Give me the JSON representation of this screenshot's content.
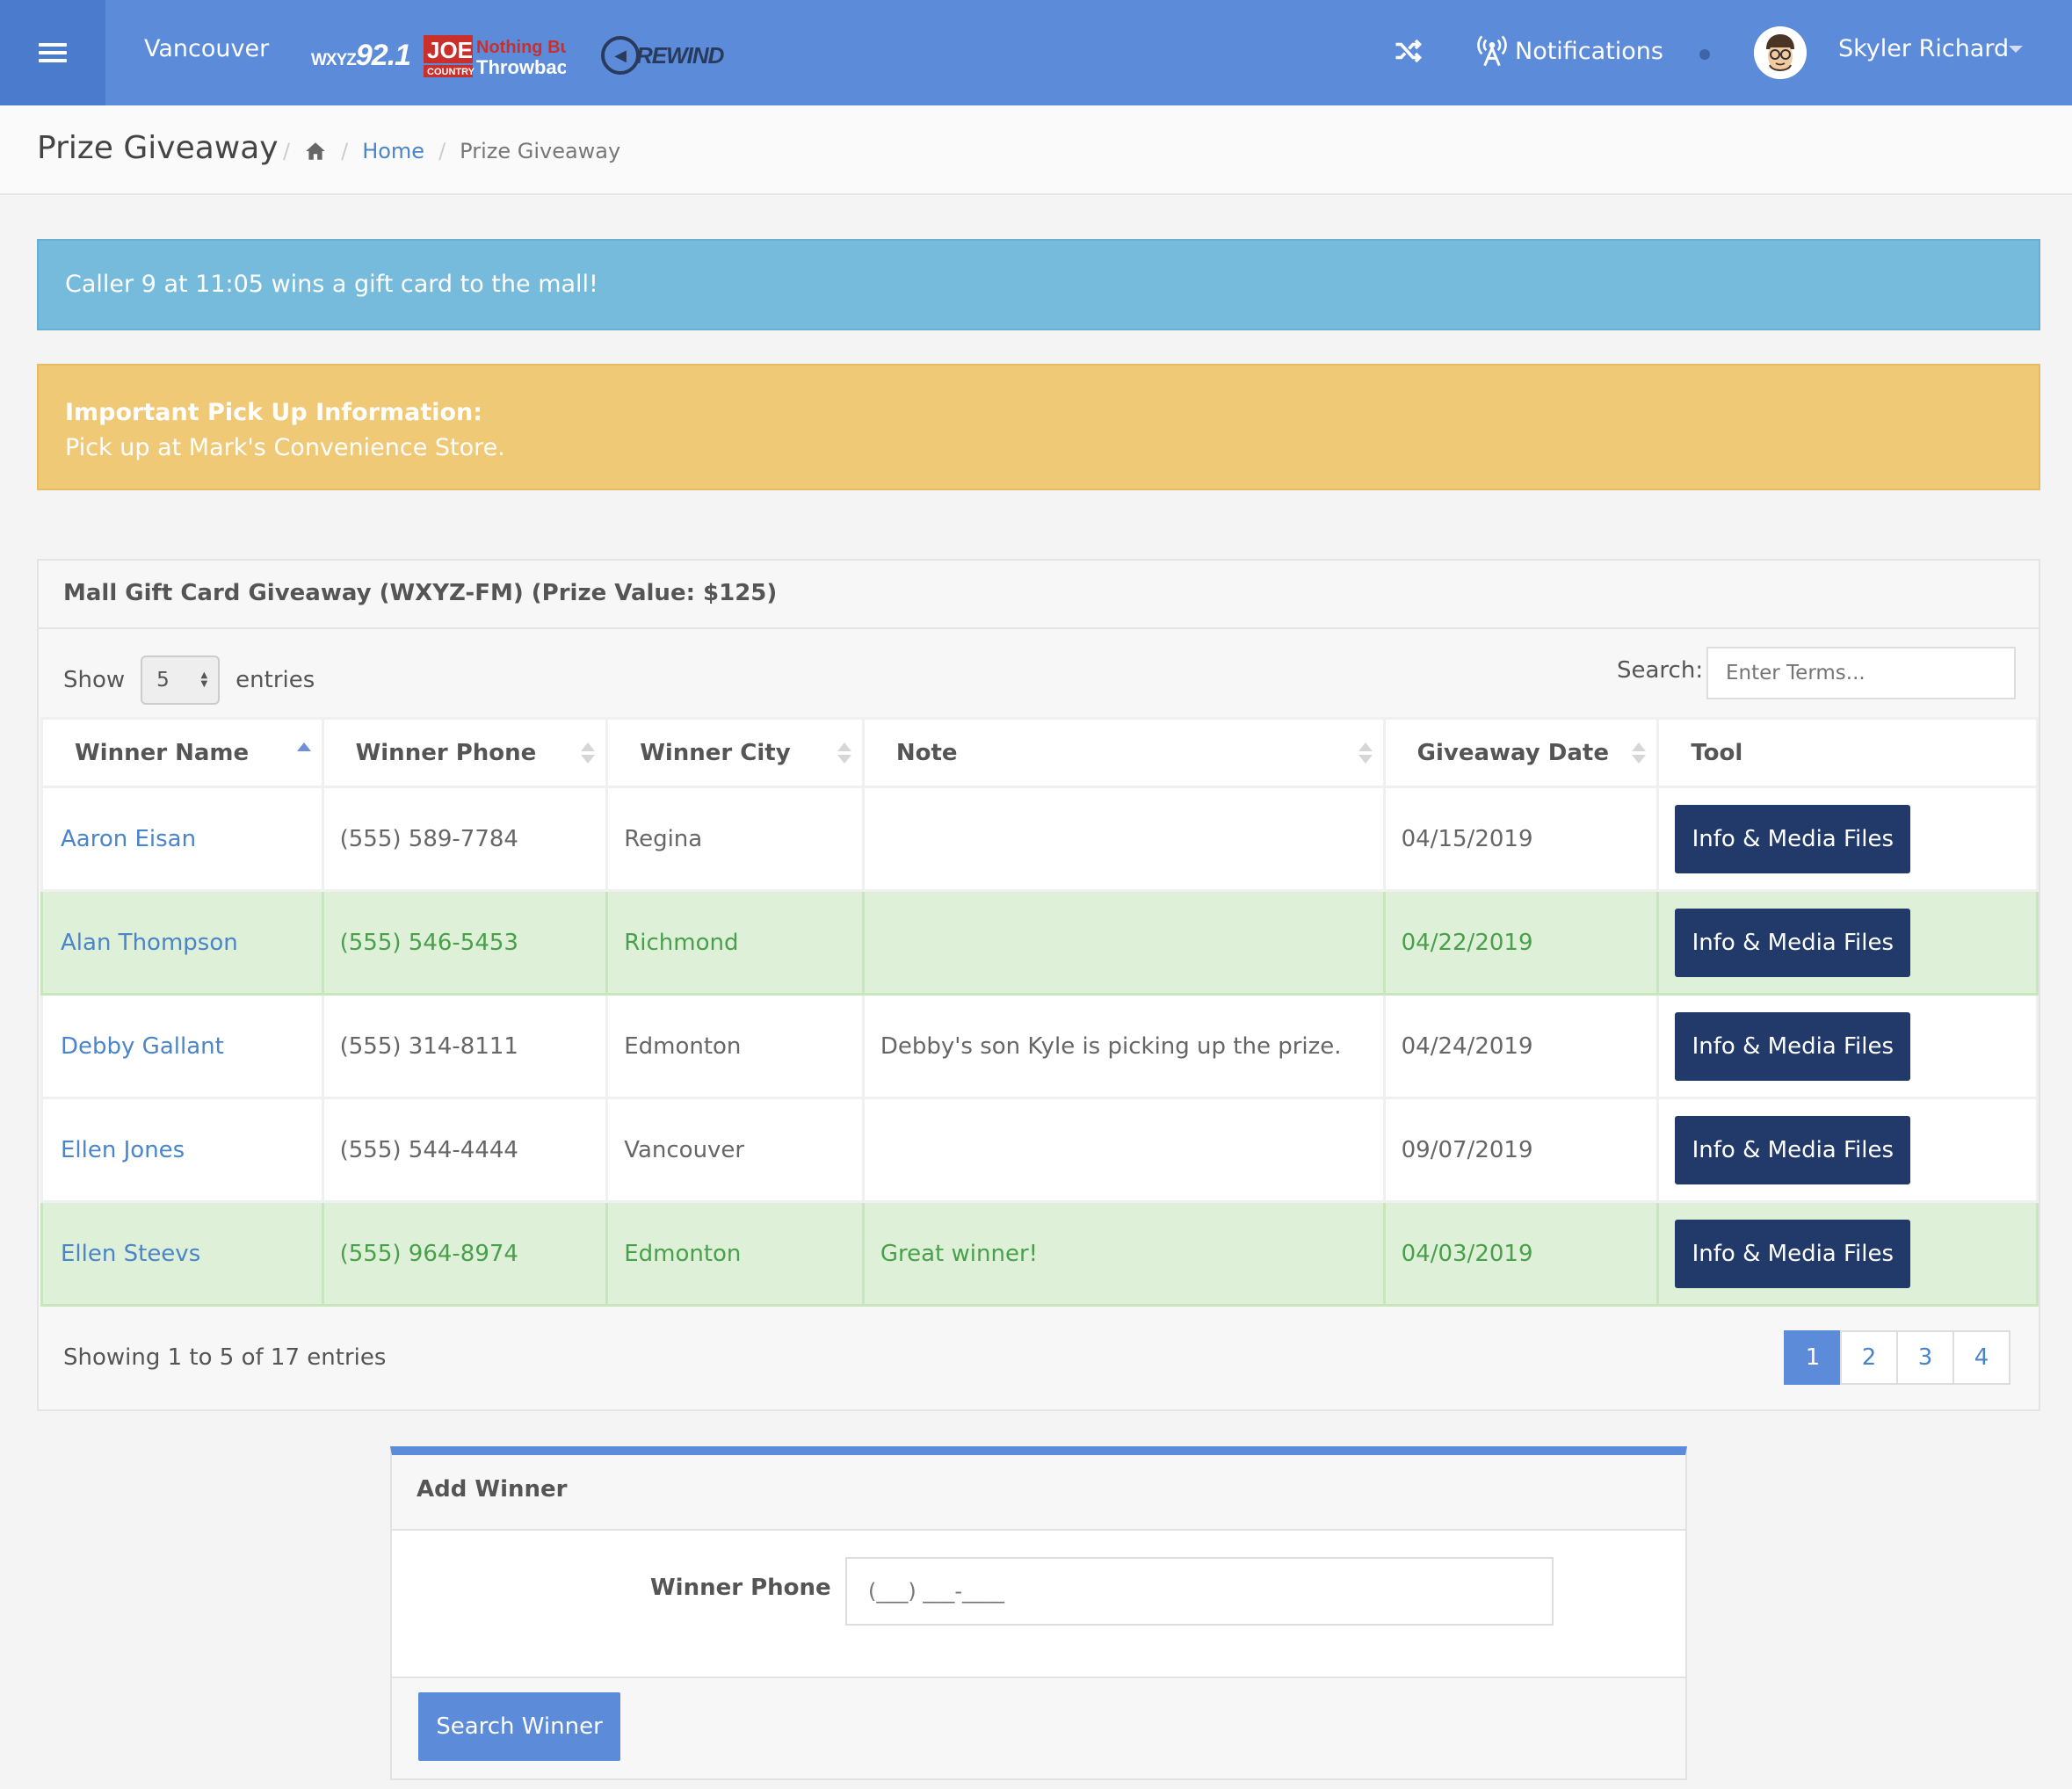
{
  "header": {
    "location": "Vancouver",
    "stations": [
      {
        "name": "WXYZ 92.1",
        "small": "WXYZ",
        "big": "92.1"
      },
      {
        "name": "JOE COUNTRY Nothing But Throwbacks",
        "line1": "Nothing But",
        "line2": "Throwbacks",
        "joe": "JOE",
        "country": "COUNTRY"
      },
      {
        "name": "REWIND",
        "text": "REWIND"
      }
    ],
    "notifications_label": "Notifications",
    "user_name": "Skyler Richard",
    "icons": [
      "menu-icon",
      "shuffle-icon",
      "antenna-icon",
      "avatar",
      "caret-down-icon"
    ]
  },
  "breadcrumb": {
    "page_title": "Prize Giveaway",
    "home_link": "Home",
    "current": "Prize Giveaway"
  },
  "alerts": {
    "info_text": "Caller 9 at 11:05 wins a gift card to the mall!",
    "pickup_title": "Important Pick Up Information:",
    "pickup_text": "Pick up at Mark's Convenience Store."
  },
  "giveaway": {
    "title": "Mall Gift Card Giveaway (WXYZ-FM) (Prize Value: $125)",
    "show_label": "Show",
    "entries_label": "entries",
    "page_size": "5",
    "search_label": "Search:",
    "search_placeholder": "Enter Terms...",
    "columns": [
      "Winner Name",
      "Winner Phone",
      "Winner City",
      "Note",
      "Giveaway Date",
      "Tool"
    ],
    "rows": [
      {
        "name": "Aaron Eisan",
        "phone": "(555) 589-7784",
        "city": "Regina",
        "note": "",
        "date": "04/15/2019",
        "tool": "Info & Media Files",
        "highlight": false
      },
      {
        "name": "Alan Thompson",
        "phone": "(555) 546-5453",
        "city": "Richmond",
        "note": "",
        "date": "04/22/2019",
        "tool": "Info & Media Files",
        "highlight": true
      },
      {
        "name": "Debby Gallant",
        "phone": "(555) 314-8111",
        "city": "Edmonton",
        "note": "Debby's son Kyle is picking up the prize.",
        "date": "04/24/2019",
        "tool": "Info & Media Files",
        "highlight": false
      },
      {
        "name": "Ellen Jones",
        "phone": "(555) 544-4444",
        "city": "Vancouver",
        "note": "",
        "date": "09/07/2019",
        "tool": "Info & Media Files",
        "highlight": false
      },
      {
        "name": "Ellen Steevs",
        "phone": "(555) 964-8974",
        "city": "Edmonton",
        "note": "Great winner!",
        "date": "04/03/2019",
        "tool": "Info & Media Files",
        "highlight": true
      }
    ],
    "showing_text": "Showing 1 to 5 of 17 entries",
    "pages": [
      "1",
      "2",
      "3",
      "4"
    ],
    "active_page": "1"
  },
  "add_winner": {
    "title": "Add Winner",
    "phone_label": "Winner Phone",
    "phone_placeholder": "(___) ___-____",
    "search_button": "Search Winner"
  },
  "colors": {
    "topbar": "#5b8bd9",
    "info_alert": "#77bbdc",
    "warning_alert": "#f0c977",
    "success_row": "#dff0d8",
    "tool_button": "#223a6a"
  }
}
